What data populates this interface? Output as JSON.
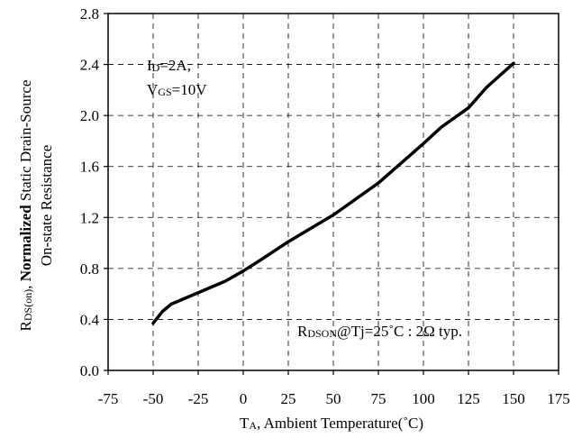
{
  "chart_data": {
    "type": "line",
    "xlabel": {
      "prefix": "T",
      "sub": "A",
      "rest": ", Ambient Temperature(˚C)"
    },
    "ylabel": {
      "line1_prefix": "R",
      "line1_sub": "DS(on)",
      "line1_mid": ", ",
      "line1_bold": "Normalized",
      "line1_rest": " Static Drain-Source",
      "line2": "On-state Resistance"
    },
    "xlim": [
      -75,
      175
    ],
    "ylim": [
      0.0,
      2.8
    ],
    "x_ticks": [
      "-75",
      "-50",
      "-25",
      "0",
      "25",
      "50",
      "75",
      "100",
      "125",
      "150",
      "175"
    ],
    "y_ticks": [
      "0.0",
      "0.4",
      "0.8",
      "1.2",
      "1.6",
      "2.0",
      "2.4",
      "2.8"
    ],
    "grid": true,
    "grid_style": "dashed",
    "series": [
      {
        "color": "#000000",
        "x": [
          -50,
          -45,
          -40,
          -30,
          -20,
          -10,
          0,
          10,
          25,
          50,
          75,
          100,
          110,
          125,
          135,
          150
        ],
        "y": [
          0.37,
          0.46,
          0.52,
          0.58,
          0.64,
          0.7,
          0.78,
          0.87,
          1.01,
          1.22,
          1.47,
          1.78,
          1.91,
          2.06,
          2.22,
          2.41
        ]
      }
    ],
    "annotations": {
      "conditions": {
        "line1_prefix": "I",
        "line1_sub": "D",
        "line1_rest": "=2A,",
        "line2_prefix": "V",
        "line2_sub": "GS",
        "line2_rest": "=10V"
      },
      "typical": {
        "prefix": "R",
        "sub": "DSON",
        "rest": "@Tj=25˚C : 2Ω   typ."
      }
    }
  }
}
